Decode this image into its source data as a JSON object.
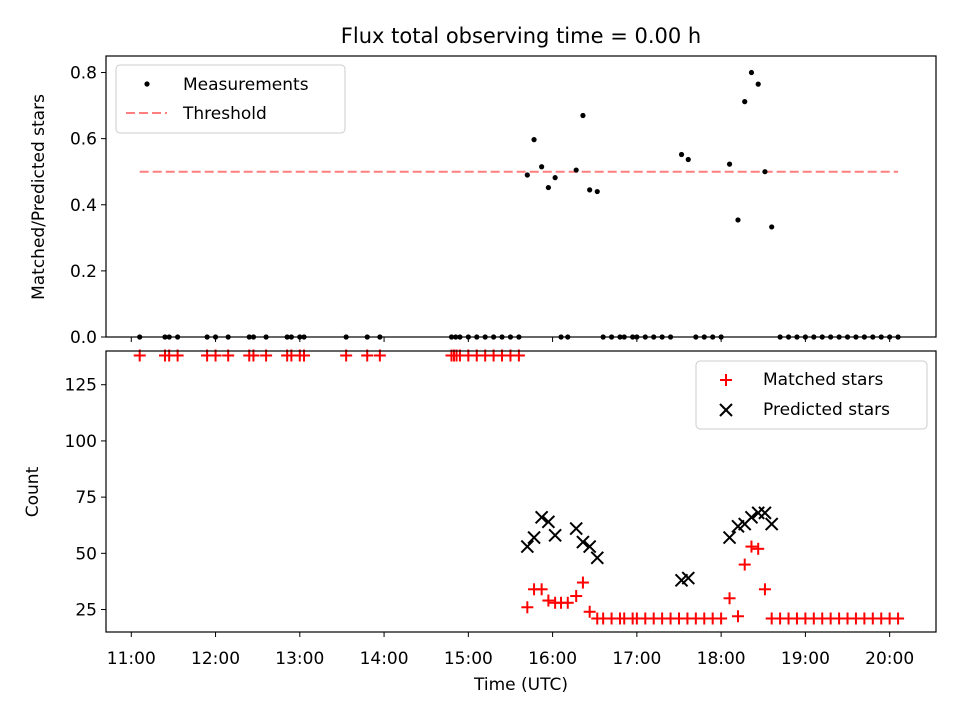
{
  "chart_data": [
    {
      "type": "scatter",
      "title": "Flux total observing time = 0.00 h",
      "xlabel": "",
      "ylabel": "Matched/Predicted stars",
      "ylim": [
        0,
        0.85
      ],
      "yticks": [
        "0.0",
        "0.2",
        "0.4",
        "0.6",
        "0.8"
      ],
      "ytick_values": [
        0,
        0.2,
        0.4,
        0.6,
        0.8
      ],
      "legend_position": "top-left",
      "threshold": {
        "name": "Threshold",
        "value": 0.5,
        "x_start": 11.1,
        "x_end": 20.1,
        "color": "#ff7f7f",
        "style": "dashed"
      },
      "series": [
        {
          "name": "Measurements",
          "color": "#000000",
          "marker": "dot",
          "points": [
            [
              11.1,
              0
            ],
            [
              11.4,
              0
            ],
            [
              11.45,
              0
            ],
            [
              11.55,
              0
            ],
            [
              11.9,
              0
            ],
            [
              12.0,
              0
            ],
            [
              12.15,
              0
            ],
            [
              12.4,
              0
            ],
            [
              12.45,
              0
            ],
            [
              12.6,
              0
            ],
            [
              12.85,
              0
            ],
            [
              12.9,
              0
            ],
            [
              13.0,
              0
            ],
            [
              13.05,
              0
            ],
            [
              13.55,
              0
            ],
            [
              13.8,
              0
            ],
            [
              13.95,
              0
            ],
            [
              14.8,
              0
            ],
            [
              14.85,
              0
            ],
            [
              14.9,
              0
            ],
            [
              15.0,
              0
            ],
            [
              15.1,
              0
            ],
            [
              15.2,
              0
            ],
            [
              15.3,
              0
            ],
            [
              15.4,
              0
            ],
            [
              15.5,
              0
            ],
            [
              15.6,
              0
            ],
            [
              15.7,
              0.49
            ],
            [
              15.78,
              0.597
            ],
            [
              15.87,
              0.515
            ],
            [
              15.95,
              0.452
            ],
            [
              16.03,
              0.482
            ],
            [
              16.1,
              0
            ],
            [
              16.18,
              0
            ],
            [
              16.28,
              0.505
            ],
            [
              16.36,
              0.67
            ],
            [
              16.44,
              0.445
            ],
            [
              16.53,
              0.44
            ],
            [
              16.6,
              0
            ],
            [
              16.7,
              0
            ],
            [
              16.8,
              0
            ],
            [
              16.85,
              0
            ],
            [
              16.95,
              0
            ],
            [
              17.0,
              0
            ],
            [
              17.1,
              0
            ],
            [
              17.2,
              0
            ],
            [
              17.3,
              0
            ],
            [
              17.4,
              0
            ],
            [
              17.53,
              0.552
            ],
            [
              17.61,
              0.537
            ],
            [
              17.7,
              0
            ],
            [
              17.8,
              0
            ],
            [
              17.9,
              0
            ],
            [
              18.0,
              0
            ],
            [
              18.1,
              0.523
            ],
            [
              18.2,
              0.354
            ],
            [
              18.28,
              0.712
            ],
            [
              18.36,
              0.8
            ],
            [
              18.44,
              0.765
            ],
            [
              18.52,
              0.5
            ],
            [
              18.6,
              0.333
            ],
            [
              18.7,
              0
            ],
            [
              18.8,
              0
            ],
            [
              18.9,
              0
            ],
            [
              19.0,
              0
            ],
            [
              19.1,
              0
            ],
            [
              19.2,
              0
            ],
            [
              19.3,
              0
            ],
            [
              19.4,
              0
            ],
            [
              19.5,
              0
            ],
            [
              19.6,
              0
            ],
            [
              19.7,
              0
            ],
            [
              19.8,
              0
            ],
            [
              19.9,
              0
            ],
            [
              20.0,
              0
            ],
            [
              20.1,
              0
            ]
          ]
        }
      ]
    },
    {
      "type": "scatter",
      "title": "",
      "xlabel": "Time (UTC)",
      "ylabel": "Count",
      "ylim": [
        15,
        140
      ],
      "yticks": [
        "25",
        "50",
        "75",
        "100",
        "125"
      ],
      "ytick_values": [
        25,
        50,
        75,
        100,
        125
      ],
      "xlim": [
        10.7,
        20.55
      ],
      "xticks": [
        "11:00",
        "12:00",
        "13:00",
        "14:00",
        "15:00",
        "16:00",
        "17:00",
        "18:00",
        "19:00",
        "20:00"
      ],
      "xtick_values": [
        11,
        12,
        13,
        14,
        15,
        16,
        17,
        18,
        19,
        20
      ],
      "legend_position": "top-right",
      "series": [
        {
          "name": "Matched stars",
          "color": "#ff0000",
          "marker": "plus",
          "points": [
            [
              11.1,
              138
            ],
            [
              11.4,
              138
            ],
            [
              11.45,
              138
            ],
            [
              11.55,
              138
            ],
            [
              11.9,
              138
            ],
            [
              12.0,
              138
            ],
            [
              12.15,
              138
            ],
            [
              12.4,
              138
            ],
            [
              12.45,
              138
            ],
            [
              12.6,
              138
            ],
            [
              12.85,
              138
            ],
            [
              12.9,
              138
            ],
            [
              13.0,
              138
            ],
            [
              13.05,
              138
            ],
            [
              13.55,
              138
            ],
            [
              13.8,
              138
            ],
            [
              13.95,
              138
            ],
            [
              14.8,
              138
            ],
            [
              14.83,
              138
            ],
            [
              14.86,
              138
            ],
            [
              14.9,
              138
            ],
            [
              15.0,
              138
            ],
            [
              15.1,
              138
            ],
            [
              15.2,
              138
            ],
            [
              15.3,
              138
            ],
            [
              15.4,
              138
            ],
            [
              15.5,
              138
            ],
            [
              15.6,
              138
            ],
            [
              15.7,
              26
            ],
            [
              15.78,
              34
            ],
            [
              15.87,
              34
            ],
            [
              15.95,
              29
            ],
            [
              16.03,
              28
            ],
            [
              16.1,
              28
            ],
            [
              16.18,
              28
            ],
            [
              16.28,
              31
            ],
            [
              16.36,
              37
            ],
            [
              16.44,
              24
            ],
            [
              16.53,
              21
            ],
            [
              16.6,
              21
            ],
            [
              16.7,
              21
            ],
            [
              16.8,
              21
            ],
            [
              16.85,
              21
            ],
            [
              16.95,
              21
            ],
            [
              17.0,
              21
            ],
            [
              17.1,
              21
            ],
            [
              17.2,
              21
            ],
            [
              17.3,
              21
            ],
            [
              17.4,
              21
            ],
            [
              17.5,
              21
            ],
            [
              17.6,
              21
            ],
            [
              17.7,
              21
            ],
            [
              17.8,
              21
            ],
            [
              17.9,
              21
            ],
            [
              18.0,
              21
            ],
            [
              18.1,
              30
            ],
            [
              18.2,
              22
            ],
            [
              18.28,
              45
            ],
            [
              18.36,
              53
            ],
            [
              18.44,
              52
            ],
            [
              18.52,
              34
            ],
            [
              18.6,
              21
            ],
            [
              18.7,
              21
            ],
            [
              18.8,
              21
            ],
            [
              18.9,
              21
            ],
            [
              19.0,
              21
            ],
            [
              19.1,
              21
            ],
            [
              19.2,
              21
            ],
            [
              19.3,
              21
            ],
            [
              19.4,
              21
            ],
            [
              19.5,
              21
            ],
            [
              19.6,
              21
            ],
            [
              19.7,
              21
            ],
            [
              19.8,
              21
            ],
            [
              19.9,
              21
            ],
            [
              20.0,
              21
            ],
            [
              20.1,
              21
            ]
          ]
        },
        {
          "name": "Predicted stars",
          "color": "#000000",
          "marker": "x",
          "points": [
            [
              15.7,
              53
            ],
            [
              15.78,
              57
            ],
            [
              15.87,
              66
            ],
            [
              15.95,
              64
            ],
            [
              16.03,
              58
            ],
            [
              16.28,
              61
            ],
            [
              16.36,
              55
            ],
            [
              16.44,
              53
            ],
            [
              16.53,
              48
            ],
            [
              17.53,
              38
            ],
            [
              17.61,
              39
            ],
            [
              18.1,
              57
            ],
            [
              18.2,
              62
            ],
            [
              18.28,
              63
            ],
            [
              18.36,
              66
            ],
            [
              18.44,
              68
            ],
            [
              18.52,
              68
            ],
            [
              18.6,
              63
            ]
          ]
        }
      ]
    }
  ]
}
